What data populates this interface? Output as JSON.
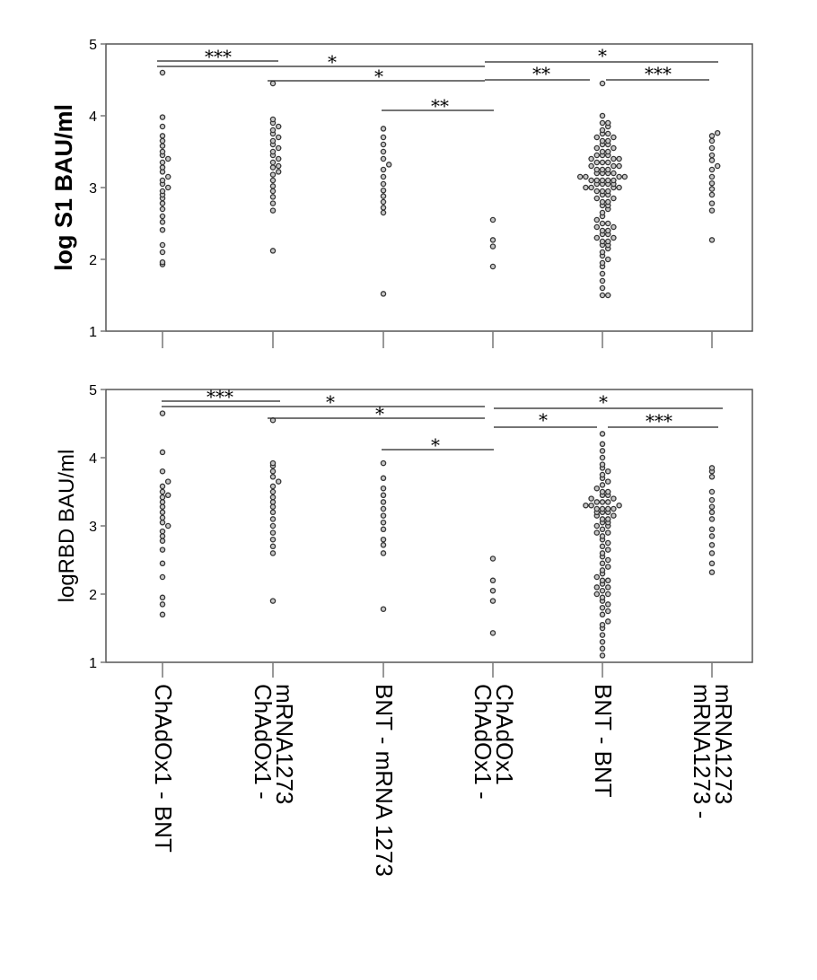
{
  "chart_data": [
    {
      "type": "scatter",
      "ylabel": "log S1 BAU/ml",
      "ylim": [
        1,
        5
      ],
      "yticks": [
        "1",
        "2",
        "3",
        "4",
        "5"
      ],
      "categories": [
        "ChAdOx1 - BNT",
        "ChAdOx1 - mRNA1273",
        "BNT - mRNA 1273",
        "ChAdOx1 - ChAdOx1",
        "BNT - BNT",
        "mRNA1273 - mRNA1273"
      ],
      "series": [
        {
          "values": [
            1.93,
            1.96,
            2.1,
            2.2,
            2.41,
            2.52,
            2.6,
            2.7,
            2.78,
            2.85,
            2.9,
            2.95,
            3.0,
            3.05,
            3.1,
            3.15,
            3.22,
            3.28,
            3.35,
            3.4,
            3.45,
            3.5,
            3.58,
            3.65,
            3.72,
            3.85,
            3.98,
            4.6
          ]
        },
        {
          "values": [
            2.12,
            2.68,
            2.78,
            2.87,
            2.95,
            3.02,
            3.1,
            3.18,
            3.22,
            3.28,
            3.3,
            3.35,
            3.4,
            3.45,
            3.5,
            3.55,
            3.6,
            3.65,
            3.7,
            3.75,
            3.8,
            3.85,
            3.9,
            3.95,
            4.45
          ]
        },
        {
          "values": [
            1.52,
            2.65,
            2.72,
            2.8,
            2.88,
            2.96,
            3.05,
            3.15,
            3.25,
            3.32,
            3.4,
            3.5,
            3.6,
            3.7,
            3.82
          ]
        },
        {
          "values": [
            1.9,
            2.18,
            2.27,
            2.55
          ]
        },
        {
          "values": [
            1.5,
            1.5,
            1.6,
            1.7,
            1.8,
            1.9,
            1.95,
            2.0,
            2.05,
            2.1,
            2.15,
            2.2,
            2.2,
            2.25,
            2.25,
            2.3,
            2.3,
            2.35,
            2.35,
            2.4,
            2.4,
            2.45,
            2.45,
            2.5,
            2.5,
            2.55,
            2.6,
            2.65,
            2.7,
            2.75,
            2.75,
            2.8,
            2.8,
            2.85,
            2.85,
            2.9,
            2.9,
            2.95,
            2.95,
            2.95,
            3.0,
            3.0,
            3.0,
            3.0,
            3.05,
            3.05,
            3.05,
            3.05,
            3.1,
            3.1,
            3.1,
            3.1,
            3.1,
            3.15,
            3.15,
            3.15,
            3.15,
            3.2,
            3.2,
            3.2,
            3.2,
            3.25,
            3.25,
            3.25,
            3.3,
            3.3,
            3.3,
            3.35,
            3.35,
            3.35,
            3.4,
            3.4,
            3.4,
            3.45,
            3.45,
            3.45,
            3.5,
            3.5,
            3.55,
            3.55,
            3.6,
            3.6,
            3.65,
            3.65,
            3.7,
            3.7,
            3.75,
            3.75,
            3.8,
            3.85,
            3.9,
            3.9,
            4.0,
            4.45
          ]
        },
        {
          "values": [
            2.27,
            2.68,
            2.78,
            2.9,
            2.98,
            3.06,
            3.15,
            3.25,
            3.3,
            3.38,
            3.45,
            3.55,
            3.65,
            3.72,
            3.76
          ]
        }
      ],
      "significance": [
        {
          "from": 0,
          "to": 1,
          "label": "***"
        },
        {
          "from": 0,
          "to": 3,
          "label": "*"
        },
        {
          "from": 1,
          "to": 3,
          "label": "*"
        },
        {
          "from": 2,
          "to": 3,
          "label": "**"
        },
        {
          "from": 3,
          "to": 5,
          "label": "*"
        },
        {
          "from": 3,
          "to": 4,
          "label": "**"
        },
        {
          "from": 4,
          "to": 5,
          "label": "***"
        }
      ]
    },
    {
      "type": "scatter",
      "ylabel": "logRBD BAU/ml",
      "ylim": [
        1,
        5
      ],
      "yticks": [
        "1",
        "2",
        "3",
        "4",
        "5"
      ],
      "categories": [
        "ChAdOx1 - BNT",
        "ChAdOx1 - mRNA1273",
        "BNT - mRNA 1273",
        "ChAdOx1 - ChAdOx1",
        "BNT - BNT",
        "mRNA1273 - mRNA1273"
      ],
      "series": [
        {
          "values": [
            1.7,
            1.85,
            1.95,
            2.25,
            2.45,
            2.65,
            2.78,
            2.85,
            2.92,
            3.0,
            3.05,
            3.12,
            3.2,
            3.28,
            3.35,
            3.42,
            3.45,
            3.5,
            3.58,
            3.65,
            3.8,
            4.08,
            4.65
          ]
        },
        {
          "values": [
            1.9,
            2.6,
            2.7,
            2.8,
            2.9,
            3.0,
            3.1,
            3.2,
            3.28,
            3.35,
            3.42,
            3.5,
            3.58,
            3.65,
            3.72,
            3.8,
            3.88,
            3.92,
            4.55
          ]
        },
        {
          "values": [
            1.78,
            2.6,
            2.72,
            2.8,
            2.95,
            3.05,
            3.15,
            3.25,
            3.35,
            3.45,
            3.55,
            3.7,
            3.92
          ]
        },
        {
          "values": [
            1.43,
            1.9,
            2.05,
            2.2,
            2.52
          ]
        },
        {
          "values": [
            1.1,
            1.2,
            1.3,
            1.4,
            1.5,
            1.55,
            1.6,
            1.7,
            1.75,
            1.8,
            1.85,
            1.9,
            1.95,
            2.0,
            2.0,
            2.05,
            2.1,
            2.1,
            2.15,
            2.2,
            2.2,
            2.25,
            2.3,
            2.35,
            2.4,
            2.45,
            2.5,
            2.55,
            2.6,
            2.65,
            2.7,
            2.75,
            2.8,
            2.85,
            2.9,
            2.9,
            2.95,
            3.0,
            3.0,
            3.05,
            3.05,
            3.1,
            3.1,
            3.15,
            3.15,
            3.2,
            3.2,
            3.2,
            3.25,
            3.25,
            3.25,
            3.25,
            3.3,
            3.3,
            3.3,
            3.35,
            3.35,
            3.35,
            3.4,
            3.4,
            3.45,
            3.45,
            3.5,
            3.5,
            3.55,
            3.6,
            3.65,
            3.7,
            3.75,
            3.8,
            3.85,
            3.9,
            4.0,
            4.1,
            4.2,
            4.35
          ]
        },
        {
          "values": [
            2.32,
            2.45,
            2.6,
            2.72,
            2.85,
            2.95,
            3.1,
            3.2,
            3.28,
            3.38,
            3.5,
            3.72,
            3.8,
            3.85
          ]
        }
      ],
      "significance": [
        {
          "from": 0,
          "to": 1,
          "label": "***"
        },
        {
          "from": 0,
          "to": 3,
          "label": "*"
        },
        {
          "from": 1,
          "to": 3,
          "label": "*"
        },
        {
          "from": 2,
          "to": 3,
          "label": "*"
        },
        {
          "from": 3,
          "to": 5,
          "label": "*"
        },
        {
          "from": 3,
          "to": 4,
          "label": "*"
        },
        {
          "from": 4,
          "to": 5,
          "label": "***"
        }
      ]
    }
  ]
}
